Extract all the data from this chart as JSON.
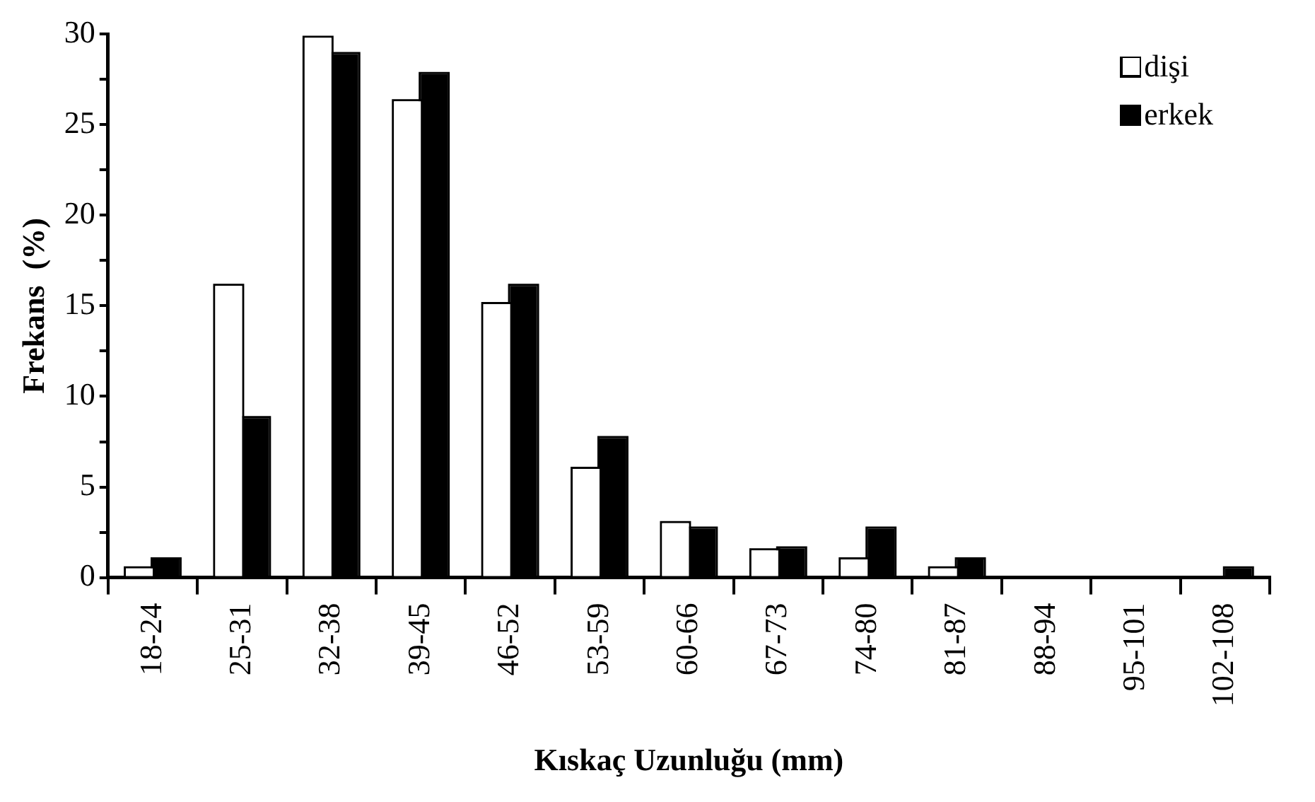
{
  "chart_data": {
    "type": "bar",
    "xlabel": "Kıskaç Uzunluğu (mm)",
    "ylabel": "Frekans  (%)",
    "categories": [
      "18-24",
      "25-31",
      "32-38",
      "39-45",
      "46-52",
      "53-59",
      "60-66",
      "67-73",
      "74-80",
      "81-87",
      "88-94",
      "95-101",
      "102-108"
    ],
    "series": [
      {
        "name": "dişi",
        "color": "#ffffff",
        "values": [
          0.5,
          16.1,
          29.8,
          26.3,
          15.1,
          6.0,
          3.0,
          1.5,
          1.0,
          0.5,
          0,
          0,
          0
        ]
      },
      {
        "name": "erkek",
        "color": "#000000",
        "values": [
          1.0,
          8.8,
          28.9,
          27.8,
          16.1,
          7.7,
          2.7,
          1.6,
          2.7,
          1.0,
          0,
          0,
          0.5
        ]
      }
    ],
    "ylim": [
      0,
      30
    ],
    "yticks": [
      0,
      {
        "value": 2.5,
        "label": null
      },
      5,
      {
        "value": 7.5,
        "label": null
      },
      10,
      {
        "value": 12.5,
        "label": null
      },
      15,
      {
        "value": 17.5,
        "label": null
      },
      20,
      {
        "value": 22.5,
        "label": null
      },
      25,
      {
        "value": 27.5,
        "label": null
      },
      30
    ],
    "legend": "top right"
  }
}
